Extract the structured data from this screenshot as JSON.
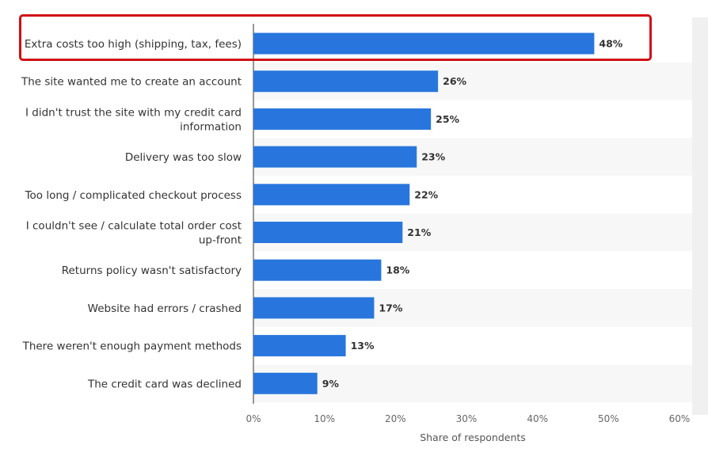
{
  "chart_data": {
    "type": "bar",
    "orientation": "horizontal",
    "categories": [
      "Extra costs too high (shipping, tax, fees)",
      "The site wanted me to create an account",
      "I didn't trust the site with my credit card information",
      "Delivery was too slow",
      "Too long / complicated checkout process",
      "I couldn't see / calculate total order cost up-front",
      "Returns policy wasn't satisfactory",
      "Website had errors / crashed",
      "There weren't enough payment methods",
      "The credit card was declined"
    ],
    "category_lines": [
      [
        "Extra costs too high (shipping, tax, fees)"
      ],
      [
        "The site wanted me to create an account"
      ],
      [
        "I didn't trust the site with my credit card",
        "information"
      ],
      [
        "Delivery was too slow"
      ],
      [
        "Too long / complicated checkout process"
      ],
      [
        "I couldn't see / calculate total order cost",
        "up-front"
      ],
      [
        "Returns policy wasn't satisfactory"
      ],
      [
        "Website had errors / crashed"
      ],
      [
        "There weren't enough payment methods"
      ],
      [
        "The credit card was declined"
      ]
    ],
    "values": [
      48,
      26,
      25,
      23,
      22,
      21,
      18,
      17,
      13,
      9
    ],
    "value_labels": [
      "48%",
      "26%",
      "25%",
      "23%",
      "22%",
      "21%",
      "18%",
      "17%",
      "13%",
      "9%"
    ],
    "xlim": [
      0,
      60
    ],
    "ticks": [
      0,
      10,
      20,
      30,
      40,
      50,
      60
    ],
    "tick_labels": [
      "0%",
      "10%",
      "20%",
      "30%",
      "40%",
      "50%",
      "60%"
    ],
    "xlabel": "Share of respondents",
    "ylabel": "",
    "title": "",
    "grid": false,
    "highlighted_category": "Extra costs too high (shipping, tax, fees)",
    "colors": {
      "bar": "#2876dd",
      "highlight": "#d10d15",
      "stripe": "#f7f7f7"
    }
  }
}
